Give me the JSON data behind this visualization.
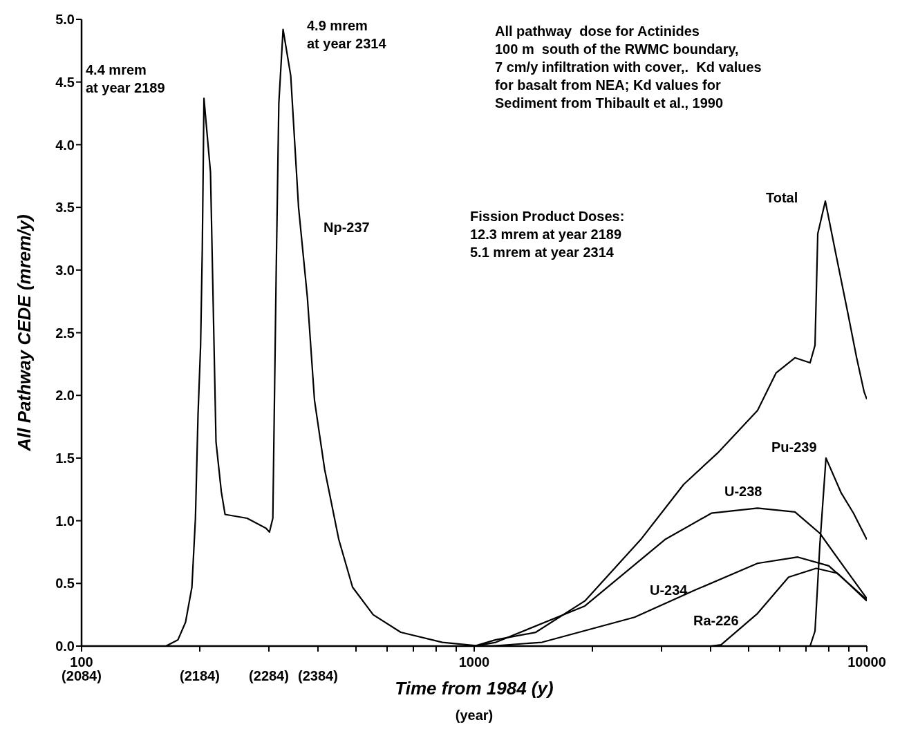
{
  "chart_data": {
    "type": "line",
    "xlabel": "Time from 1984 (y)",
    "ylabel": "All Pathway CEDE (mrem/y)",
    "log": "x",
    "marker": "none",
    "line_style": "solid",
    "xlim": [
      100,
      10000
    ],
    "ylim": [
      0,
      5
    ],
    "xticks": [
      100,
      {
        "value": 200,
        "label": null
      },
      {
        "value": 300,
        "label": null
      },
      {
        "value": 400,
        "label": null
      },
      {
        "value": 500,
        "label": null
      },
      {
        "value": 600,
        "label": null
      },
      {
        "value": 700,
        "label": null
      },
      {
        "value": 800,
        "label": null
      },
      {
        "value": 900,
        "label": null
      },
      1000,
      {
        "value": 2000,
        "label": null
      },
      {
        "value": 3000,
        "label": null
      },
      {
        "value": 4000,
        "label": null
      },
      {
        "value": 5000,
        "label": null
      },
      {
        "value": 6000,
        "label": null
      },
      {
        "value": 7000,
        "label": null
      },
      {
        "value": 8000,
        "label": null
      },
      {
        "value": 9000,
        "label": null
      },
      10000
    ],
    "yticks": [
      {
        "value": 0,
        "label": "0.0"
      },
      0.5,
      {
        "value": 1,
        "label": "1.0"
      },
      1.5,
      {
        "value": 2,
        "label": "2.0"
      },
      2.5,
      {
        "value": 3,
        "label": "3.0"
      },
      3.5,
      {
        "value": 4,
        "label": "4.0"
      },
      4.5,
      {
        "value": 5,
        "label": "5.0"
      }
    ],
    "series": [
      {
        "name": "Np-237",
        "color": "#000000",
        "x": [
          100,
          164,
          176,
          184,
          191,
          195,
          198,
          201,
          203,
          205,
          213,
          220,
          227,
          232,
          264,
          295,
          301,
          307,
          313,
          318,
          326,
          341,
          357,
          376,
          392,
          416,
          452,
          490,
          553,
          650,
          830,
          1000,
          1144
        ],
        "values": [
          0,
          0,
          0.05,
          0.19,
          0.47,
          1.02,
          1.85,
          2.4,
          3.17,
          4.37,
          3.78,
          1.63,
          1.23,
          1.05,
          1.02,
          0.94,
          0.91,
          1.02,
          2.95,
          4.33,
          4.92,
          4.55,
          3.5,
          2.78,
          1.96,
          1.41,
          0.85,
          0.47,
          0.25,
          0.11,
          0.03,
          0.005,
          0
        ]
      },
      {
        "name": "Total",
        "color": "#000000",
        "x": [
          1000,
          1135,
          1435,
          1914,
          2656,
          3417,
          4168,
          5268,
          5875,
          6560,
          7170,
          7380,
          7500,
          7840,
          8300,
          8930,
          9420,
          9840,
          10000
        ],
        "values": [
          0,
          0.05,
          0.11,
          0.36,
          0.85,
          1.29,
          1.54,
          1.88,
          2.18,
          2.3,
          2.26,
          2.4,
          3.29,
          3.55,
          3.16,
          2.67,
          2.3,
          2.03,
          1.97
        ]
      },
      {
        "name": "U-238",
        "color": "#000000",
        "x": [
          1000,
          1135,
          1914,
          3062,
          4018,
          5268,
          6560,
          7590,
          8750,
          10000
        ],
        "values": [
          0,
          0.03,
          0.32,
          0.85,
          1.06,
          1.1,
          1.07,
          0.9,
          0.63,
          0.38
        ]
      },
      {
        "name": "U-234",
        "color": "#000000",
        "x": [
          1100,
          1488,
          2561,
          3673,
          5268,
          6670,
          8000,
          10000
        ],
        "values": [
          0,
          0.03,
          0.23,
          0.45,
          0.66,
          0.71,
          0.64,
          0.37
        ]
      },
      {
        "name": "Ra-226",
        "color": "#000000",
        "x": [
          4000,
          4254,
          5268,
          6320,
          7430,
          8430,
          10000
        ],
        "values": [
          0,
          0.01,
          0.26,
          0.55,
          0.62,
          0.58,
          0.36
        ]
      },
      {
        "name": "Pu-239",
        "color": "#000000",
        "x": [
          7000,
          7170,
          7380,
          7590,
          7870,
          8610,
          9250,
          10000
        ],
        "values": [
          0,
          0,
          0.12,
          0.8,
          1.5,
          1.22,
          1.06,
          0.85
        ]
      }
    ],
    "annotations": [
      "4.4 mrem\nat year 2189",
      "4.9 mrem\nat year 2314",
      "All pathway  dose for Actinides\n100 m  south of the RWMC boundary,\n7 cm/y infiltration with cover,.  Kd values\nfor basalt from NEA; Kd values for\nSediment from Thibault et al., 1990",
      "Fission Product Doses:\n12.3 mrem at year 2189\n5.1 mrem at year 2314",
      "(year)",
      "(2084)",
      "(2184)",
      "(2284)",
      "(2384)"
    ]
  }
}
